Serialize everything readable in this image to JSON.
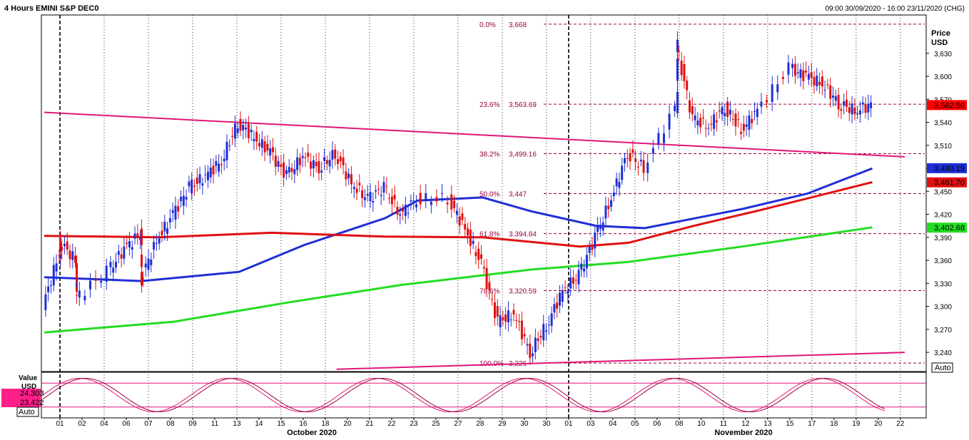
{
  "header": {
    "title": "4 Hours EMINI S&P DEC0",
    "range": "09:00 30/09/2020 - 16:00 23/11/2020 (CHG)"
  },
  "price_axis": {
    "title_line1": "Price",
    "title_line2": "USD",
    "auto_label": "Auto",
    "ticks": [
      "3,630",
      "3,600",
      "3,570",
      "3,540",
      "3,510",
      "3,480",
      "3,450",
      "3,420",
      "3,390",
      "3,360",
      "3,330",
      "3,300",
      "3,270",
      "3,240"
    ]
  },
  "osc_axis": {
    "title_line1": "Value",
    "title_line2": "USD",
    "auto_label": "Auto"
  },
  "x_axis": {
    "ticks": [
      "01",
      "02",
      "04",
      "06",
      "07",
      "08",
      "09",
      "11",
      "13",
      "14",
      "15",
      "16",
      "18",
      "20",
      "21",
      "22",
      "23",
      "25",
      "27",
      "28",
      "29",
      "30",
      "30",
      "01",
      "03",
      "04",
      "05",
      "06",
      "08",
      "10",
      "11",
      "12",
      "13",
      "15",
      "17",
      "18",
      "19",
      "20",
      "22"
    ],
    "month_labels": [
      "October 2020",
      "November 2020"
    ]
  },
  "chart_data": {
    "type": "candlestick",
    "title": "4 Hours EMINI S&P DEC0",
    "ylabel": "Price USD",
    "ylim": [
      3215,
      3680
    ],
    "x_range": [
      "2020-09-30",
      "2020-11-22"
    ],
    "last_price": {
      "label": "3,562.50",
      "value": 3562.5,
      "color": "#ff0000"
    },
    "fibonacci": {
      "levels": [
        {
          "pct": "0.0%",
          "label": "3,668",
          "value": 3668
        },
        {
          "pct": "23.6%",
          "label": "3,563.69",
          "value": 3563.69
        },
        {
          "pct": "38.2%",
          "label": "3,499.16",
          "value": 3499.16
        },
        {
          "pct": "50.0%",
          "label": "3,447",
          "value": 3447
        },
        {
          "pct": "61.8%",
          "label": "3,394.84",
          "value": 3394.84
        },
        {
          "pct": "78.6%",
          "label": "3,320.59",
          "value": 3320.59
        },
        {
          "pct": "100.0%",
          "label": "3,226",
          "value": 3226
        }
      ],
      "color": "#99003d"
    },
    "moving_averages": [
      {
        "color": "#1f2fd6",
        "last": 3480.19,
        "last_label": "3,480.19",
        "points": [
          [
            "2020-09-30",
            3338
          ],
          [
            "2020-10-06",
            3333
          ],
          [
            "2020-10-12",
            3345
          ],
          [
            "2020-10-16",
            3380
          ],
          [
            "2020-10-21",
            3415
          ],
          [
            "2020-10-23",
            3438
          ],
          [
            "2020-10-27",
            3442
          ],
          [
            "2020-10-30",
            3424
          ],
          [
            "2020-11-03",
            3405
          ],
          [
            "2020-11-06",
            3402
          ],
          [
            "2020-11-12",
            3427
          ],
          [
            "2020-11-16",
            3447
          ],
          [
            "2020-11-20",
            3480
          ]
        ]
      },
      {
        "color": "#e01010",
        "last": 3461.7,
        "last_label": "3,461.70",
        "points": [
          [
            "2020-09-30",
            3392
          ],
          [
            "2020-10-07",
            3390
          ],
          [
            "2020-10-14",
            3396
          ],
          [
            "2020-10-21",
            3391
          ],
          [
            "2020-10-27",
            3390
          ],
          [
            "2020-11-02",
            3378
          ],
          [
            "2020-11-05",
            3383
          ],
          [
            "2020-11-09",
            3405
          ],
          [
            "2020-11-13",
            3425
          ],
          [
            "2020-11-17",
            3446
          ],
          [
            "2020-11-20",
            3462
          ]
        ]
      },
      {
        "color": "#22dd22",
        "last": 3402.68,
        "last_label": "3,402.68",
        "points": [
          [
            "2020-09-30",
            3266
          ],
          [
            "2020-10-08",
            3280
          ],
          [
            "2020-10-15",
            3305
          ],
          [
            "2020-10-22",
            3328
          ],
          [
            "2020-10-30",
            3348
          ],
          [
            "2020-11-05",
            3358
          ],
          [
            "2020-11-12",
            3378
          ],
          [
            "2020-11-20",
            3403
          ]
        ]
      }
    ],
    "trendlines": [
      {
        "color": "#e0157a",
        "points": [
          [
            "2020-09-30",
            3553
          ],
          [
            "2020-11-22",
            3495
          ]
        ]
      },
      {
        "color": "#e0157a",
        "points": [
          [
            "2020-10-18",
            3218
          ],
          [
            "2020-11-22",
            3240
          ]
        ]
      }
    ],
    "candles_close": [
      [
        "2020-09-30",
        3300
      ],
      [
        "2020-10-01",
        3370
      ],
      [
        "2020-10-01",
        3385
      ],
      [
        "2020-10-02",
        3360
      ],
      [
        "2020-10-02",
        3310
      ],
      [
        "2020-10-04",
        3345
      ],
      [
        "2020-10-05",
        3375
      ],
      [
        "2020-10-06",
        3395
      ],
      [
        "2020-10-06",
        3335
      ],
      [
        "2020-10-07",
        3385
      ],
      [
        "2020-10-08",
        3420
      ],
      [
        "2020-10-09",
        3455
      ],
      [
        "2020-10-10",
        3470
      ],
      [
        "2020-10-11",
        3490
      ],
      [
        "2020-10-12",
        3540
      ],
      [
        "2020-10-13",
        3520
      ],
      [
        "2020-10-14",
        3500
      ],
      [
        "2020-10-15",
        3470
      ],
      [
        "2020-10-16",
        3495
      ],
      [
        "2020-10-17",
        3480
      ],
      [
        "2020-10-18",
        3500
      ],
      [
        "2020-10-19",
        3460
      ],
      [
        "2020-10-20",
        3440
      ],
      [
        "2020-10-21",
        3455
      ],
      [
        "2020-10-22",
        3420
      ],
      [
        "2020-10-23",
        3440
      ],
      [
        "2020-10-25",
        3440
      ],
      [
        "2020-10-26",
        3400
      ],
      [
        "2020-10-27",
        3355
      ],
      [
        "2020-10-28",
        3280
      ],
      [
        "2020-10-29",
        3290
      ],
      [
        "2020-10-30",
        3240
      ],
      [
        "2020-10-31",
        3275
      ],
      [
        "2020-11-01",
        3320
      ],
      [
        "2020-11-02",
        3340
      ],
      [
        "2020-11-03",
        3390
      ],
      [
        "2020-11-04",
        3440
      ],
      [
        "2020-11-05",
        3500
      ],
      [
        "2020-11-06",
        3480
      ],
      [
        "2020-11-08",
        3560
      ],
      [
        "2020-11-08",
        3640
      ],
      [
        "2020-11-09",
        3545
      ],
      [
        "2020-11-10",
        3535
      ],
      [
        "2020-11-11",
        3560
      ],
      [
        "2020-11-12",
        3530
      ],
      [
        "2020-11-13",
        3555
      ],
      [
        "2020-11-15",
        3610
      ],
      [
        "2020-11-16",
        3600
      ],
      [
        "2020-11-17",
        3590
      ],
      [
        "2020-11-18",
        3565
      ],
      [
        "2020-11-19",
        3555
      ],
      [
        "2020-11-20",
        3562.5
      ]
    ],
    "oscillator": {
      "labels": [
        "24.303",
        "23.422"
      ],
      "upper_band": 80,
      "lower_band": 20,
      "colors": [
        "#e0157a",
        "#99003d"
      ]
    },
    "grid": "vertical dotted"
  }
}
